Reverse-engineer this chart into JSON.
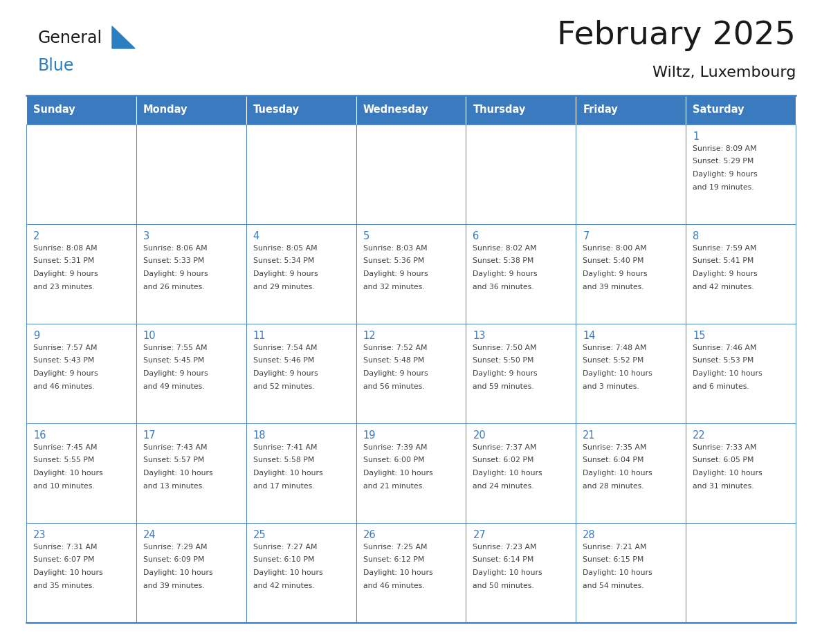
{
  "title": "February 2025",
  "subtitle": "Wiltz, Luxembourg",
  "days_of_week": [
    "Sunday",
    "Monday",
    "Tuesday",
    "Wednesday",
    "Thursday",
    "Friday",
    "Saturday"
  ],
  "header_bg": "#3a7abf",
  "header_text": "#ffffff",
  "cell_bg": "#ffffff",
  "border_color": "#3a7abf",
  "day_number_color": "#3a7abf",
  "text_color": "#404040",
  "title_color": "#1a1a1a",
  "logo_general_color": "#1a1a1a",
  "logo_blue_color": "#2b7fc1",
  "calendar": [
    [
      null,
      null,
      null,
      null,
      null,
      null,
      {
        "day": "1",
        "sunrise": "8:09 AM",
        "sunset": "5:29 PM",
        "daylight1": "9 hours",
        "daylight2": "and 19 minutes."
      }
    ],
    [
      {
        "day": "2",
        "sunrise": "8:08 AM",
        "sunset": "5:31 PM",
        "daylight1": "9 hours",
        "daylight2": "and 23 minutes."
      },
      {
        "day": "3",
        "sunrise": "8:06 AM",
        "sunset": "5:33 PM",
        "daylight1": "9 hours",
        "daylight2": "and 26 minutes."
      },
      {
        "day": "4",
        "sunrise": "8:05 AM",
        "sunset": "5:34 PM",
        "daylight1": "9 hours",
        "daylight2": "and 29 minutes."
      },
      {
        "day": "5",
        "sunrise": "8:03 AM",
        "sunset": "5:36 PM",
        "daylight1": "9 hours",
        "daylight2": "and 32 minutes."
      },
      {
        "day": "6",
        "sunrise": "8:02 AM",
        "sunset": "5:38 PM",
        "daylight1": "9 hours",
        "daylight2": "and 36 minutes."
      },
      {
        "day": "7",
        "sunrise": "8:00 AM",
        "sunset": "5:40 PM",
        "daylight1": "9 hours",
        "daylight2": "and 39 minutes."
      },
      {
        "day": "8",
        "sunrise": "7:59 AM",
        "sunset": "5:41 PM",
        "daylight1": "9 hours",
        "daylight2": "and 42 minutes."
      }
    ],
    [
      {
        "day": "9",
        "sunrise": "7:57 AM",
        "sunset": "5:43 PM",
        "daylight1": "9 hours",
        "daylight2": "and 46 minutes."
      },
      {
        "day": "10",
        "sunrise": "7:55 AM",
        "sunset": "5:45 PM",
        "daylight1": "9 hours",
        "daylight2": "and 49 minutes."
      },
      {
        "day": "11",
        "sunrise": "7:54 AM",
        "sunset": "5:46 PM",
        "daylight1": "9 hours",
        "daylight2": "and 52 minutes."
      },
      {
        "day": "12",
        "sunrise": "7:52 AM",
        "sunset": "5:48 PM",
        "daylight1": "9 hours",
        "daylight2": "and 56 minutes."
      },
      {
        "day": "13",
        "sunrise": "7:50 AM",
        "sunset": "5:50 PM",
        "daylight1": "9 hours",
        "daylight2": "and 59 minutes."
      },
      {
        "day": "14",
        "sunrise": "7:48 AM",
        "sunset": "5:52 PM",
        "daylight1": "10 hours",
        "daylight2": "and 3 minutes."
      },
      {
        "day": "15",
        "sunrise": "7:46 AM",
        "sunset": "5:53 PM",
        "daylight1": "10 hours",
        "daylight2": "and 6 minutes."
      }
    ],
    [
      {
        "day": "16",
        "sunrise": "7:45 AM",
        "sunset": "5:55 PM",
        "daylight1": "10 hours",
        "daylight2": "and 10 minutes."
      },
      {
        "day": "17",
        "sunrise": "7:43 AM",
        "sunset": "5:57 PM",
        "daylight1": "10 hours",
        "daylight2": "and 13 minutes."
      },
      {
        "day": "18",
        "sunrise": "7:41 AM",
        "sunset": "5:58 PM",
        "daylight1": "10 hours",
        "daylight2": "and 17 minutes."
      },
      {
        "day": "19",
        "sunrise": "7:39 AM",
        "sunset": "6:00 PM",
        "daylight1": "10 hours",
        "daylight2": "and 21 minutes."
      },
      {
        "day": "20",
        "sunrise": "7:37 AM",
        "sunset": "6:02 PM",
        "daylight1": "10 hours",
        "daylight2": "and 24 minutes."
      },
      {
        "day": "21",
        "sunrise": "7:35 AM",
        "sunset": "6:04 PM",
        "daylight1": "10 hours",
        "daylight2": "and 28 minutes."
      },
      {
        "day": "22",
        "sunrise": "7:33 AM",
        "sunset": "6:05 PM",
        "daylight1": "10 hours",
        "daylight2": "and 31 minutes."
      }
    ],
    [
      {
        "day": "23",
        "sunrise": "7:31 AM",
        "sunset": "6:07 PM",
        "daylight1": "10 hours",
        "daylight2": "and 35 minutes."
      },
      {
        "day": "24",
        "sunrise": "7:29 AM",
        "sunset": "6:09 PM",
        "daylight1": "10 hours",
        "daylight2": "and 39 minutes."
      },
      {
        "day": "25",
        "sunrise": "7:27 AM",
        "sunset": "6:10 PM",
        "daylight1": "10 hours",
        "daylight2": "and 42 minutes."
      },
      {
        "day": "26",
        "sunrise": "7:25 AM",
        "sunset": "6:12 PM",
        "daylight1": "10 hours",
        "daylight2": "and 46 minutes."
      },
      {
        "day": "27",
        "sunrise": "7:23 AM",
        "sunset": "6:14 PM",
        "daylight1": "10 hours",
        "daylight2": "and 50 minutes."
      },
      {
        "day": "28",
        "sunrise": "7:21 AM",
        "sunset": "6:15 PM",
        "daylight1": "10 hours",
        "daylight2": "and 54 minutes."
      },
      null
    ]
  ]
}
